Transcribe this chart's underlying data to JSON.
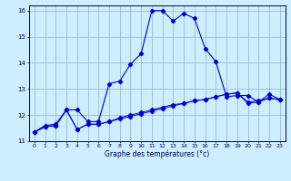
{
  "xlabel": "Graphe des températures (°c)",
  "bg_color": "#cceeff",
  "grid_color": "#99bbcc",
  "line_color": "#0000cc",
  "xlim": [
    -0.5,
    23.5
  ],
  "ylim": [
    11.0,
    16.2
  ],
  "yticks": [
    11,
    12,
    13,
    14,
    15,
    16
  ],
  "xticks": [
    0,
    1,
    2,
    3,
    4,
    5,
    6,
    7,
    8,
    9,
    10,
    11,
    12,
    13,
    14,
    15,
    16,
    17,
    18,
    19,
    20,
    21,
    22,
    23
  ],
  "line1_x": [
    0,
    1,
    2,
    3,
    4,
    5,
    6,
    7,
    8,
    9,
    10,
    11,
    12,
    13,
    14,
    15,
    16,
    17,
    18,
    19,
    20,
    21,
    22,
    23
  ],
  "line1_y": [
    11.35,
    11.55,
    11.6,
    12.2,
    11.45,
    11.65,
    11.65,
    11.75,
    11.85,
    11.95,
    12.05,
    12.15,
    12.25,
    12.35,
    12.45,
    12.55,
    12.6,
    12.7,
    12.8,
    12.85,
    12.5,
    12.55,
    12.65,
    12.6
  ],
  "line2_x": [
    0,
    1,
    2,
    3,
    4,
    5,
    6,
    7,
    8,
    9,
    10,
    11,
    12,
    13,
    14,
    15,
    16,
    17,
    18,
    19,
    20,
    21,
    22,
    23
  ],
  "line2_y": [
    11.35,
    11.6,
    11.65,
    12.2,
    12.2,
    11.75,
    11.75,
    13.2,
    13.3,
    13.95,
    14.35,
    16.0,
    16.0,
    15.6,
    15.9,
    15.7,
    14.55,
    14.05,
    12.7,
    12.75,
    12.75,
    12.5,
    12.8,
    12.6
  ],
  "line3_x": [
    0,
    1,
    2,
    3,
    4,
    5,
    6,
    7,
    8,
    9,
    10,
    11,
    12,
    13,
    14,
    15,
    16,
    17,
    18,
    19,
    20,
    21,
    22,
    23
  ],
  "line3_y": [
    11.35,
    11.55,
    11.6,
    12.2,
    11.45,
    11.65,
    11.65,
    11.75,
    11.9,
    12.0,
    12.1,
    12.2,
    12.3,
    12.4,
    12.45,
    12.55,
    12.6,
    12.7,
    12.8,
    12.85,
    12.45,
    12.5,
    12.65,
    12.58
  ]
}
